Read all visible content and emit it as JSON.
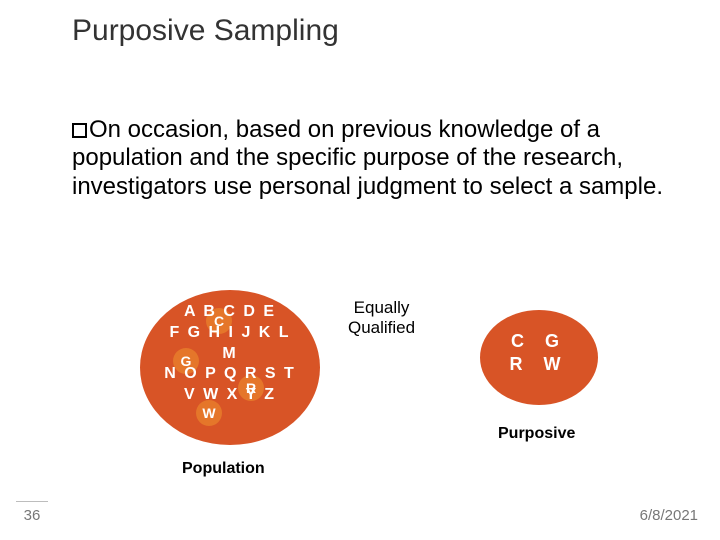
{
  "title": "Purposive Sampling",
  "body_text": "On occasion, based on previous knowledge of a population and the specific purpose of the research, investigators use personal judgment to select a sample.",
  "diagram": {
    "population": {
      "rows": [
        "A B C D E",
        "F G H I J K L",
        "M",
        "N O P Q R S T",
        "V W X Y Z"
      ],
      "label": "Population",
      "ellipse_color": "#d85426",
      "highlight_color": "#e5762a",
      "text_color": "#ffffff",
      "font_size": 16,
      "highlights": {
        "C": "C",
        "G": "G",
        "R": "R",
        "W": "W"
      }
    },
    "arrow_label": {
      "line1": "Equally",
      "line2": "Qualified",
      "font_size": 17
    },
    "sample": {
      "row1": "C G",
      "row2": "R W",
      "label": "Purposive",
      "ellipse_color": "#d85426",
      "text_color": "#ffffff",
      "font_size": 18
    }
  },
  "footer": {
    "slide_number": "36",
    "date": "6/8/2021"
  },
  "colors": {
    "bg": "#ffffff",
    "title": "#333333",
    "body": "#000000",
    "muted": "#777777"
  }
}
